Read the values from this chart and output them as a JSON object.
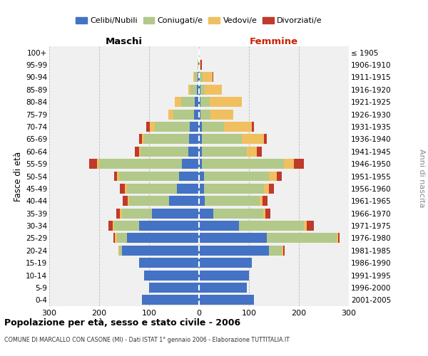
{
  "age_groups": [
    "0-4",
    "5-9",
    "10-14",
    "15-19",
    "20-24",
    "25-29",
    "30-34",
    "35-39",
    "40-44",
    "45-49",
    "50-54",
    "55-59",
    "60-64",
    "65-69",
    "70-74",
    "75-79",
    "80-84",
    "85-89",
    "90-94",
    "95-99",
    "100+"
  ],
  "birth_years": [
    "2001-2005",
    "1996-2000",
    "1991-1995",
    "1986-1990",
    "1981-1985",
    "1976-1980",
    "1971-1975",
    "1966-1970",
    "1961-1965",
    "1956-1960",
    "1951-1955",
    "1946-1950",
    "1941-1945",
    "1936-1940",
    "1931-1935",
    "1926-1930",
    "1921-1925",
    "1916-1920",
    "1911-1915",
    "1906-1910",
    "≤ 1905"
  ],
  "colors": {
    "celibe": "#4472c4",
    "coniugato": "#b2c98a",
    "vedovo": "#f0c060",
    "divorziato": "#c0392b"
  },
  "maschi": {
    "celibe": [
      115,
      100,
      110,
      120,
      155,
      145,
      120,
      95,
      60,
      45,
      40,
      35,
      22,
      20,
      18,
      10,
      8,
      5,
      3,
      1,
      0
    ],
    "coniugato": [
      0,
      0,
      0,
      0,
      5,
      20,
      50,
      60,
      80,
      100,
      120,
      165,
      95,
      90,
      70,
      42,
      28,
      12,
      5,
      2,
      0
    ],
    "vedovo": [
      0,
      0,
      0,
      0,
      2,
      3,
      3,
      3,
      3,
      3,
      5,
      5,
      3,
      5,
      10,
      10,
      12,
      5,
      3,
      0,
      0
    ],
    "divorziato": [
      0,
      0,
      0,
      0,
      0,
      3,
      8,
      8,
      10,
      10,
      5,
      15,
      8,
      5,
      8,
      0,
      0,
      0,
      0,
      0,
      0
    ]
  },
  "femmine": {
    "celibe": [
      110,
      95,
      100,
      105,
      140,
      135,
      80,
      28,
      12,
      10,
      10,
      5,
      5,
      5,
      5,
      3,
      3,
      3,
      2,
      0,
      0
    ],
    "coniugato": [
      0,
      0,
      0,
      0,
      25,
      140,
      130,
      100,
      110,
      120,
      130,
      165,
      90,
      80,
      45,
      20,
      18,
      8,
      5,
      1,
      0
    ],
    "vedovo": [
      0,
      0,
      0,
      0,
      3,
      3,
      5,
      5,
      5,
      10,
      15,
      20,
      20,
      45,
      55,
      45,
      65,
      35,
      20,
      2,
      0
    ],
    "divorziato": [
      0,
      0,
      0,
      0,
      3,
      3,
      15,
      10,
      10,
      10,
      10,
      20,
      10,
      5,
      5,
      0,
      0,
      0,
      2,
      2,
      0
    ]
  },
  "title": "Popolazione per età, sesso e stato civile - 2006",
  "subtitle": "COMUNE DI MARCALLO CON CASONE (MI) - Dati ISTAT 1° gennaio 2006 - Elaborazione TUTTITALIA.IT",
  "xlabel_maschi": "Maschi",
  "xlabel_femmine": "Femmine",
  "ylabel": "Fasce di età",
  "ylabel_right": "Anni di nascita",
  "xlim": 300,
  "bg_color": "#f0f0f0",
  "grid_color": "#cccccc",
  "legend_labels": [
    "Celibi/Nubili",
    "Coniugati/e",
    "Vedovi/e",
    "Divorziati/e"
  ]
}
